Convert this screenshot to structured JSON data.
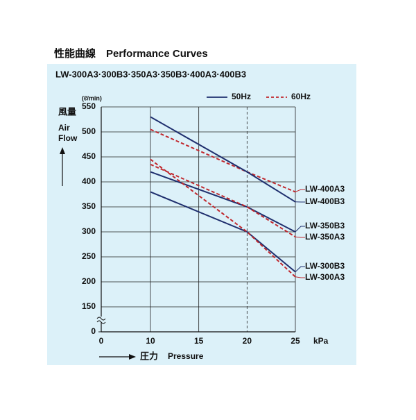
{
  "chart_data": {
    "type": "line",
    "title": "性能曲線　Performance Curves",
    "subtitle": "LW-300A3·300B3·350A3·350B3·400A3·400B3",
    "y_unit": "(ℓ/min)",
    "y_label_ja": "風量",
    "y_label": "Air\nFlow",
    "x_label_ja": "圧力",
    "x_label": "Pressure",
    "x_unit": "kPa",
    "xlim": [
      0,
      25
    ],
    "xticks": [
      0,
      10,
      15,
      20,
      25
    ],
    "ylim": [
      0,
      550
    ],
    "yticks": [
      0,
      150,
      200,
      250,
      300,
      350,
      400,
      450,
      500,
      550
    ],
    "y_axis_break": true,
    "grid": true,
    "xgrid_dashed_at": 20,
    "legend": [
      {
        "label": "50Hz",
        "color": "#1f2f6e",
        "dashed": false
      },
      {
        "label": "60Hz",
        "color": "#c0272d",
        "dashed": true
      }
    ],
    "x": [
      10,
      20,
      25
    ],
    "series": [
      {
        "name": "LW-400A3",
        "color": "#c0272d",
        "dashed": true,
        "values": [
          505,
          420,
          380
        ]
      },
      {
        "name": "LW-400B3",
        "color": "#1f2f6e",
        "dashed": false,
        "values": [
          530,
          420,
          360
        ]
      },
      {
        "name": "LW-350B3",
        "color": "#1f2f6e",
        "dashed": false,
        "values": [
          420,
          350,
          300
        ]
      },
      {
        "name": "LW-350A3",
        "color": "#c0272d",
        "dashed": true,
        "values": [
          435,
          350,
          290
        ]
      },
      {
        "name": "LW-300B3",
        "color": "#1f2f6e",
        "dashed": false,
        "values": [
          380,
          300,
          220
        ]
      },
      {
        "name": "LW-300A3",
        "color": "#c0272d",
        "dashed": true,
        "values": [
          445,
          300,
          210
        ]
      }
    ]
  }
}
